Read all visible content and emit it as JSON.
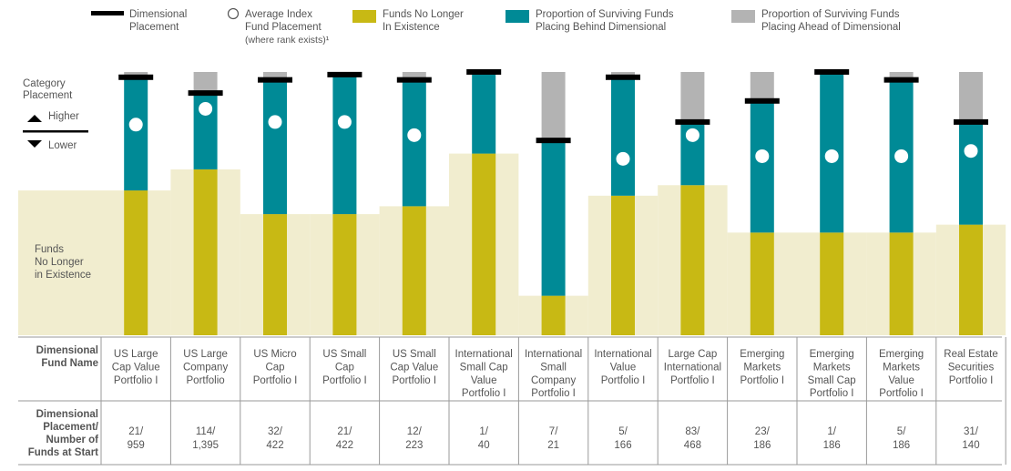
{
  "legend": {
    "placement": {
      "line1": "Dimensional",
      "line2": "Placement"
    },
    "index": {
      "line1": "Average Index",
      "line2": "Fund Placement",
      "line3": "(where rank exists)¹"
    },
    "defunct": {
      "line1": "Funds No Longer",
      "line2": "In Existence"
    },
    "behind": {
      "line1": "Proportion of Surviving Funds",
      "line2": "Placing Behind Dimensional"
    },
    "ahead": {
      "line1": "Proportion of Surviving Funds",
      "line2": "Placing Ahead of Dimensional"
    }
  },
  "side": {
    "category_line1": "Category",
    "category_line2": "Placement",
    "higher": "Higher",
    "lower": "Lower",
    "defunct_line1": "Funds",
    "defunct_line2": "No Longer",
    "defunct_line3": "in Existence"
  },
  "table": {
    "row1_head": [
      "Dimensional",
      "Fund Name"
    ],
    "row2_head": [
      "Dimensional",
      "Placement/",
      "Number of",
      "Funds at Start"
    ]
  },
  "colors": {
    "defunct": "#c8b914",
    "behind": "#008a96",
    "ahead": "#b3b3b3",
    "background_band": "#f1edcf",
    "marker": "#000000",
    "index_dot": "#ffffff"
  },
  "chart_data": {
    "type": "bar",
    "stacked": true,
    "ylim": [
      0,
      100
    ],
    "y_meaning": "percent of funds at start, top = higher category placement",
    "categories": [
      "US Large Cap Value Portfolio I",
      "US Large Company Portfolio",
      "US Micro Cap Portfolio I",
      "US Small Cap Portfolio I",
      "US Small Cap Value Portfolio I",
      "International Small Cap Value Portfolio I",
      "International Small Company Portfolio I",
      "International Value Portfolio I",
      "Large Cap International Portfolio I",
      "Emerging Markets Portfolio I",
      "Emerging Markets Small Cap Portfolio I",
      "Emerging Markets Value Portfolio I",
      "Real Estate Securities Portfolio I"
    ],
    "name_lines": [
      [
        "US Large",
        "Cap Value",
        "Portfolio I"
      ],
      [
        "US Large",
        "Company",
        "Portfolio"
      ],
      [
        "US Micro",
        "Cap",
        "Portfolio I"
      ],
      [
        "US Small",
        "Cap",
        "Portfolio I"
      ],
      [
        "US Small",
        "Cap Value",
        "Portfolio I"
      ],
      [
        "International",
        "Small Cap",
        "Value",
        "Portfolio I"
      ],
      [
        "International",
        "Small",
        "Company",
        "Portfolio I"
      ],
      [
        "International",
        "Value",
        "Portfolio I"
      ],
      [
        "Large Cap",
        "International",
        "Portfolio I"
      ],
      [
        "Emerging",
        "Markets",
        "Portfolio I"
      ],
      [
        "Emerging",
        "Markets",
        "Small Cap",
        "Portfolio I"
      ],
      [
        "Emerging",
        "Markets",
        "Value",
        "Portfolio I"
      ],
      [
        "Real Estate",
        "Securities",
        "Portfolio I"
      ]
    ],
    "placement_labels": [
      [
        "21/",
        "959"
      ],
      [
        "114/",
        "1,395"
      ],
      [
        "32/",
        "422"
      ],
      [
        "21/",
        "422"
      ],
      [
        "12/",
        "223"
      ],
      [
        "1/",
        "40"
      ],
      [
        "7/",
        "21"
      ],
      [
        "5/",
        "166"
      ],
      [
        "83/",
        "468"
      ],
      [
        "23/",
        "186"
      ],
      [
        "1/",
        "186"
      ],
      [
        "5/",
        "186"
      ],
      [
        "31/",
        "140"
      ]
    ],
    "series": [
      {
        "name": "Funds No Longer In Existence",
        "values": [
          55,
          63,
          46,
          46,
          49,
          69,
          15,
          53,
          57,
          39,
          39,
          39,
          42
        ]
      },
      {
        "name": "Proportion of Surviving Funds Placing Behind Dimensional",
        "values": [
          43,
          30,
          51,
          53,
          48,
          31,
          59,
          45,
          24,
          50,
          61,
          58,
          39
        ]
      },
      {
        "name": "Proportion of Surviving Funds Placing Ahead of Dimensional",
        "values": [
          2,
          7,
          3,
          1,
          3,
          0,
          26,
          2,
          19,
          11,
          0,
          3,
          19
        ]
      }
    ],
    "dimensional_placement": [
      2,
      8,
      3,
      1,
      3,
      0,
      26,
      2,
      19,
      11,
      0,
      3,
      19
    ],
    "average_index_placement": [
      20,
      14,
      19,
      19,
      24,
      null,
      null,
      33,
      24,
      32,
      32,
      32,
      30
    ],
    "background_band": [
      55,
      63,
      46,
      46,
      49,
      69,
      15,
      53,
      57,
      39,
      39,
      39,
      42
    ]
  }
}
